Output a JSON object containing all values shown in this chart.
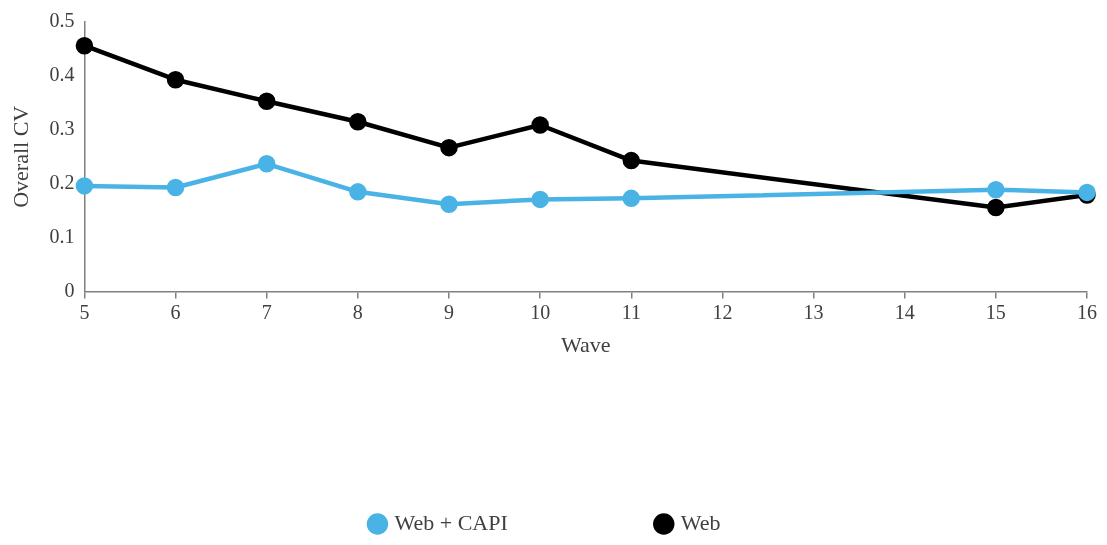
{
  "chart_data": {
    "type": "line",
    "xlabel": "Wave",
    "ylabel": "Overall CV",
    "x": [
      5,
      6,
      7,
      8,
      9,
      10,
      11,
      15,
      16
    ],
    "series": [
      {
        "name": "Web",
        "color": "#000000",
        "values": [
          0.456,
          0.393,
          0.353,
          0.315,
          0.267,
          0.309,
          0.243,
          0.156,
          0.179
        ]
      },
      {
        "name": "Web + CAPI",
        "color": "#4ab3e6",
        "values": [
          0.196,
          0.193,
          0.237,
          0.185,
          0.162,
          0.171,
          0.173,
          0.189,
          0.184
        ]
      }
    ],
    "xlim": [
      5,
      16
    ],
    "xticks": [
      5,
      6,
      7,
      8,
      9,
      10,
      11,
      12,
      13,
      14,
      15,
      16
    ],
    "ylim": [
      0,
      0.5
    ],
    "yticks": [
      0,
      0.1,
      0.2,
      0.3,
      0.4,
      0.5
    ],
    "grid": false,
    "legend": "bottom",
    "marker": "circle",
    "line_style": "solid"
  }
}
